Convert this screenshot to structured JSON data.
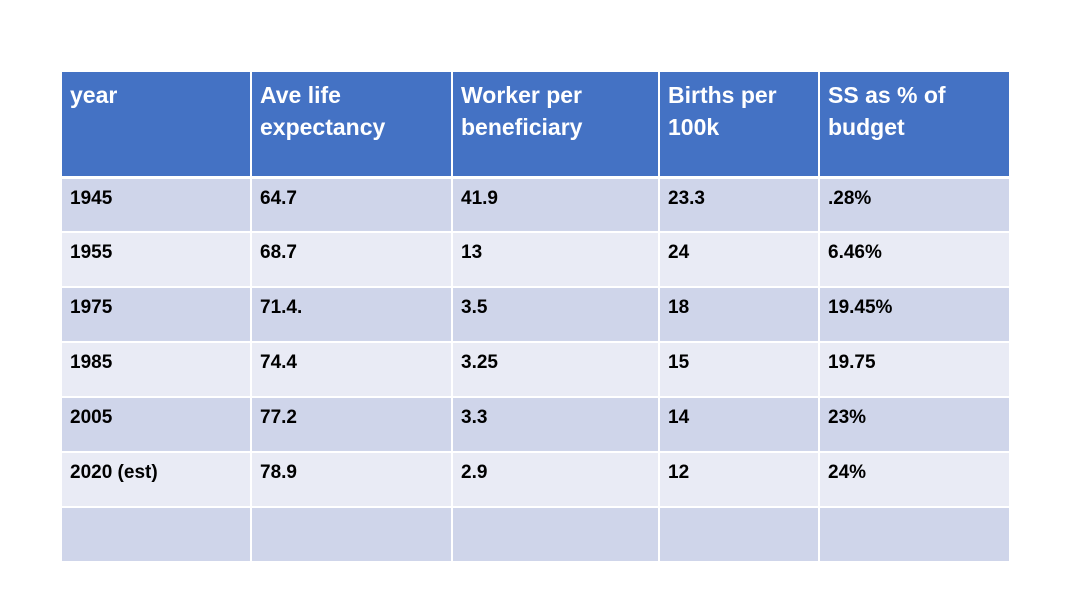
{
  "table": {
    "headers": [
      "year",
      "Ave  life expectancy",
      "Worker per beneficiary",
      "Births per 100k",
      "SS as % of budget"
    ],
    "rows": [
      [
        "1945",
        "64.7",
        "41.9",
        "23.3",
        ".28%"
      ],
      [
        "1955",
        "68.7",
        "13",
        "24",
        "6.46%"
      ],
      [
        "1975",
        "71.4.",
        "3.5",
        "18",
        "19.45%"
      ],
      [
        "1985",
        "74.4",
        "3.25",
        "15",
        "19.75"
      ],
      [
        "2005",
        "77.2",
        "3.3",
        "14",
        "23%"
      ],
      [
        "2020 (est)",
        "78.9",
        "2.9",
        "12",
        "24%"
      ],
      [
        "",
        "",
        "",
        "",
        ""
      ]
    ]
  },
  "colors": {
    "header_bg": "#4472c4",
    "row_odd_bg": "#cfd5ea",
    "row_even_bg": "#e9ebf5"
  }
}
